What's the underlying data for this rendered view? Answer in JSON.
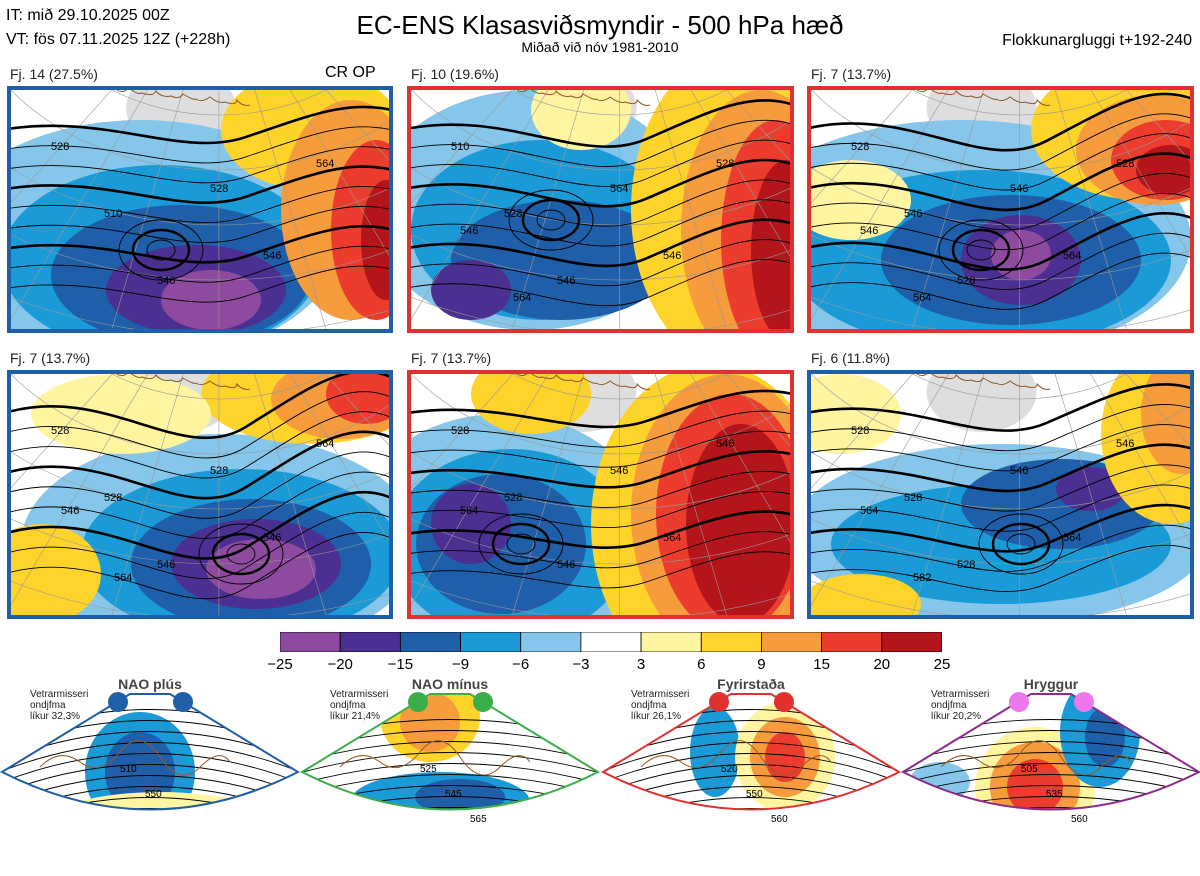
{
  "header": {
    "init_time": "IT: mið 29.10.2025 00Z",
    "valid_time": "VT: fös 07.11.2025 12Z  (+228h)",
    "title": "EC-ENS Klasasviðsmyndir - 500 hPa hæð",
    "subtitle": "Miðað við nóv 1981-2010",
    "window": "Flokkunargluggi t+192-240"
  },
  "panels": [
    {
      "label": "Fj. 14 (27.5%)",
      "border": "#1f5fa8",
      "extra": "CR OP",
      "contours": [
        "528",
        "510",
        "546",
        "528",
        "546",
        "564"
      ]
    },
    {
      "label": "Fj. 10 (19.6%)",
      "border": "#e03030",
      "extra": "",
      "contours": [
        "510",
        "528",
        "546",
        "564",
        "546",
        "528",
        "546",
        "564"
      ]
    },
    {
      "label": "Fj. 7 (13.7%)",
      "border": "#e03030",
      "extra": "",
      "contours": [
        "528",
        "546",
        "528",
        "546",
        "564",
        "528",
        "546",
        "564"
      ]
    },
    {
      "label": "Fj. 7 (13.7%)",
      "border": "#1f5fa8",
      "extra": "",
      "contours": [
        "528",
        "528",
        "546",
        "528",
        "546",
        "564",
        "546",
        "564"
      ]
    },
    {
      "label": "Fj. 7 (13.7%)",
      "border": "#e03030",
      "extra": "",
      "contours": [
        "528",
        "528",
        "546",
        "546",
        "564",
        "546",
        "564"
      ]
    },
    {
      "label": "Fj. 6 (11.8%)",
      "border": "#1f5fa8",
      "extra": "",
      "contours": [
        "528",
        "528",
        "528",
        "546",
        "564",
        "546",
        "564",
        "582"
      ]
    }
  ],
  "colorbar": {
    "ticks": [
      "−25",
      "−20",
      "−15",
      "−9",
      "−6",
      "−3",
      "3",
      "6",
      "9",
      "15",
      "20",
      "25"
    ],
    "colors": [
      "#8e4a9e",
      "#4b2f91",
      "#1f5ea8",
      "#1a9ad6",
      "#86c6ea",
      "#ffffff",
      "#fff4a0",
      "#fed32a",
      "#f69c3c",
      "#ec3c2e",
      "#b3151a"
    ]
  },
  "regimes": [
    {
      "title": "NAO plús",
      "note": [
        "Vetrarmisseri",
        "ondjfma",
        "líkur 32,3%"
      ],
      "color": "#1f5fa8",
      "dot": "#1f5fa8",
      "contours": [
        "510",
        "550"
      ]
    },
    {
      "title": "NAO mínus",
      "note": [
        "Vetrarmisseri",
        "ondjfma",
        "líkur 21,4%"
      ],
      "color": "#3bae49",
      "dot": "#3bae49",
      "contours": [
        "525",
        "545",
        "565"
      ]
    },
    {
      "title": "Fyrirstaða",
      "note": [
        "Vetrarmisseri",
        "ondjfma",
        "líkur 26,1%"
      ],
      "color": "#e03030",
      "dot": "#e03030",
      "contours": [
        "520",
        "550",
        "560"
      ]
    },
    {
      "title": "Hryggur",
      "note": [
        "Vetrarmisseri",
        "ondjfma",
        "líkur 20,2%"
      ],
      "color": "#8e2a8e",
      "dot": "#ee77ee",
      "contours": [
        "505",
        "535",
        "560"
      ]
    }
  ]
}
